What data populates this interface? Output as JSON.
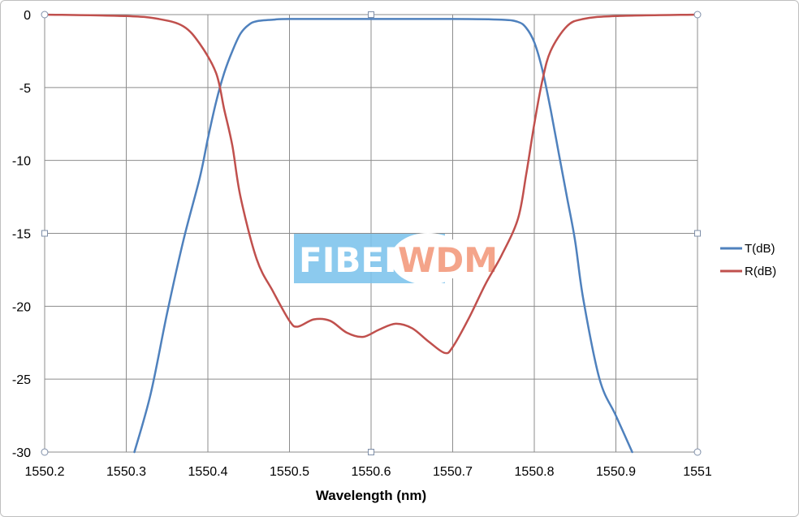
{
  "chart_data": {
    "type": "line",
    "title": "",
    "xlabel": "Wavelength (nm)",
    "ylabel": "",
    "xlim": [
      1550.2,
      1551
    ],
    "ylim": [
      -30,
      0
    ],
    "xticks": [
      "1550.2",
      "1550.3",
      "1550.4",
      "1550.5",
      "1550.6",
      "1550.7",
      "1550.8",
      "1550.9",
      "1551"
    ],
    "yticks": [
      "0",
      "-5",
      "-10",
      "-15",
      "-20",
      "-25",
      "-30"
    ],
    "grid": true,
    "legend_position": "right",
    "series": [
      {
        "name": "T(dB)",
        "color": "#4F81BD",
        "x": [
          1550.31,
          1550.33,
          1550.35,
          1550.37,
          1550.39,
          1550.4,
          1550.41,
          1550.42,
          1550.43,
          1550.44,
          1550.45,
          1550.46,
          1550.48,
          1550.5,
          1550.6,
          1550.7,
          1550.76,
          1550.78,
          1550.79,
          1550.8,
          1550.81,
          1550.82,
          1550.83,
          1550.84,
          1550.85,
          1550.86,
          1550.88,
          1550.9,
          1550.92
        ],
        "y": [
          -30,
          -26,
          -20.5,
          -15.5,
          -11.2,
          -8.5,
          -6,
          -4,
          -2.5,
          -1.3,
          -0.7,
          -0.45,
          -0.35,
          -0.3,
          -0.3,
          -0.3,
          -0.35,
          -0.5,
          -0.9,
          -1.9,
          -3.8,
          -6.5,
          -9.5,
          -12.5,
          -15.5,
          -19.5,
          -25,
          -27.5,
          -30
        ]
      },
      {
        "name": "R(dB)",
        "color": "#C0504D",
        "x": [
          1550.2,
          1550.3,
          1550.34,
          1550.37,
          1550.39,
          1550.41,
          1550.42,
          1550.43,
          1550.44,
          1550.46,
          1550.48,
          1550.5,
          1550.51,
          1550.53,
          1550.55,
          1550.57,
          1550.59,
          1550.61,
          1550.63,
          1550.65,
          1550.67,
          1550.69,
          1550.7,
          1550.72,
          1550.74,
          1550.76,
          1550.78,
          1550.79,
          1550.8,
          1550.81,
          1550.82,
          1550.84,
          1550.86,
          1550.9,
          1551
        ],
        "y": [
          0,
          -0.1,
          -0.3,
          -0.8,
          -2,
          -4,
          -6.5,
          -9,
          -12.5,
          -16.8,
          -19,
          -21,
          -21.4,
          -20.9,
          -21,
          -21.8,
          -22.1,
          -21.6,
          -21.2,
          -21.5,
          -22.4,
          -23.2,
          -22.8,
          -20.8,
          -18.5,
          -16.5,
          -14,
          -11,
          -7.5,
          -4.5,
          -2.5,
          -0.8,
          -0.3,
          -0.1,
          0
        ]
      }
    ]
  },
  "watermark": {
    "left_text": "FIBER",
    "right_text": "WDM",
    "box_color": "#7FC4EC",
    "left_text_color": "#FFFFFF",
    "right_text_color": "#F4A48A"
  }
}
